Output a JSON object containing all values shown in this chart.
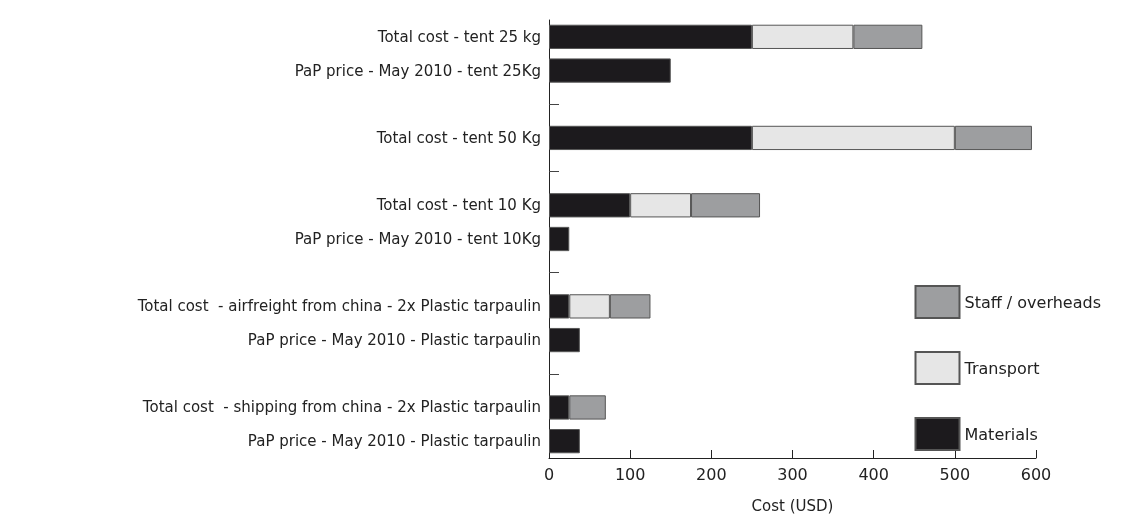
{
  "chart_data": {
    "type": "bar",
    "orientation": "horizontal",
    "stacked": true,
    "xlabel": "Cost (USD)",
    "categories": [
      "Total cost - tent 25 kg",
      "PaP price - May 2010 - tent 25Kg",
      null,
      "Total cost - tent 50 Kg",
      null,
      "Total cost - tent 10 Kg",
      "PaP price - May 2010 - tent 10Kg",
      null,
      "Total cost  - airfreight from china - 2x Plastic tarpaulin",
      "PaP price - May 2010 - Plastic tarpaulin",
      null,
      "Total cost  - shipping from china - 2x Plastic tarpaulin",
      "PaP price - May 2010 - Plastic tarpaulin"
    ],
    "series": [
      {
        "name": "Materials",
        "color": "#1c1a1d",
        "values": [
          250,
          150,
          null,
          250,
          null,
          100,
          25,
          null,
          25,
          38,
          null,
          25,
          38
        ]
      },
      {
        "name": "Transport",
        "color": "#e6e6e6",
        "values": [
          125,
          null,
          null,
          250,
          null,
          75,
          null,
          null,
          50,
          null,
          null,
          null,
          null
        ]
      },
      {
        "name": "Staff / overheads",
        "color": "#9d9ea0",
        "values": [
          85,
          null,
          null,
          95,
          null,
          85,
          null,
          null,
          50,
          null,
          null,
          45,
          null
        ]
      }
    ],
    "xlim": [
      0,
      600
    ],
    "xticks": [
      0,
      100,
      200,
      300,
      400,
      500,
      600
    ],
    "grid": false,
    "legend": "bottom right"
  }
}
